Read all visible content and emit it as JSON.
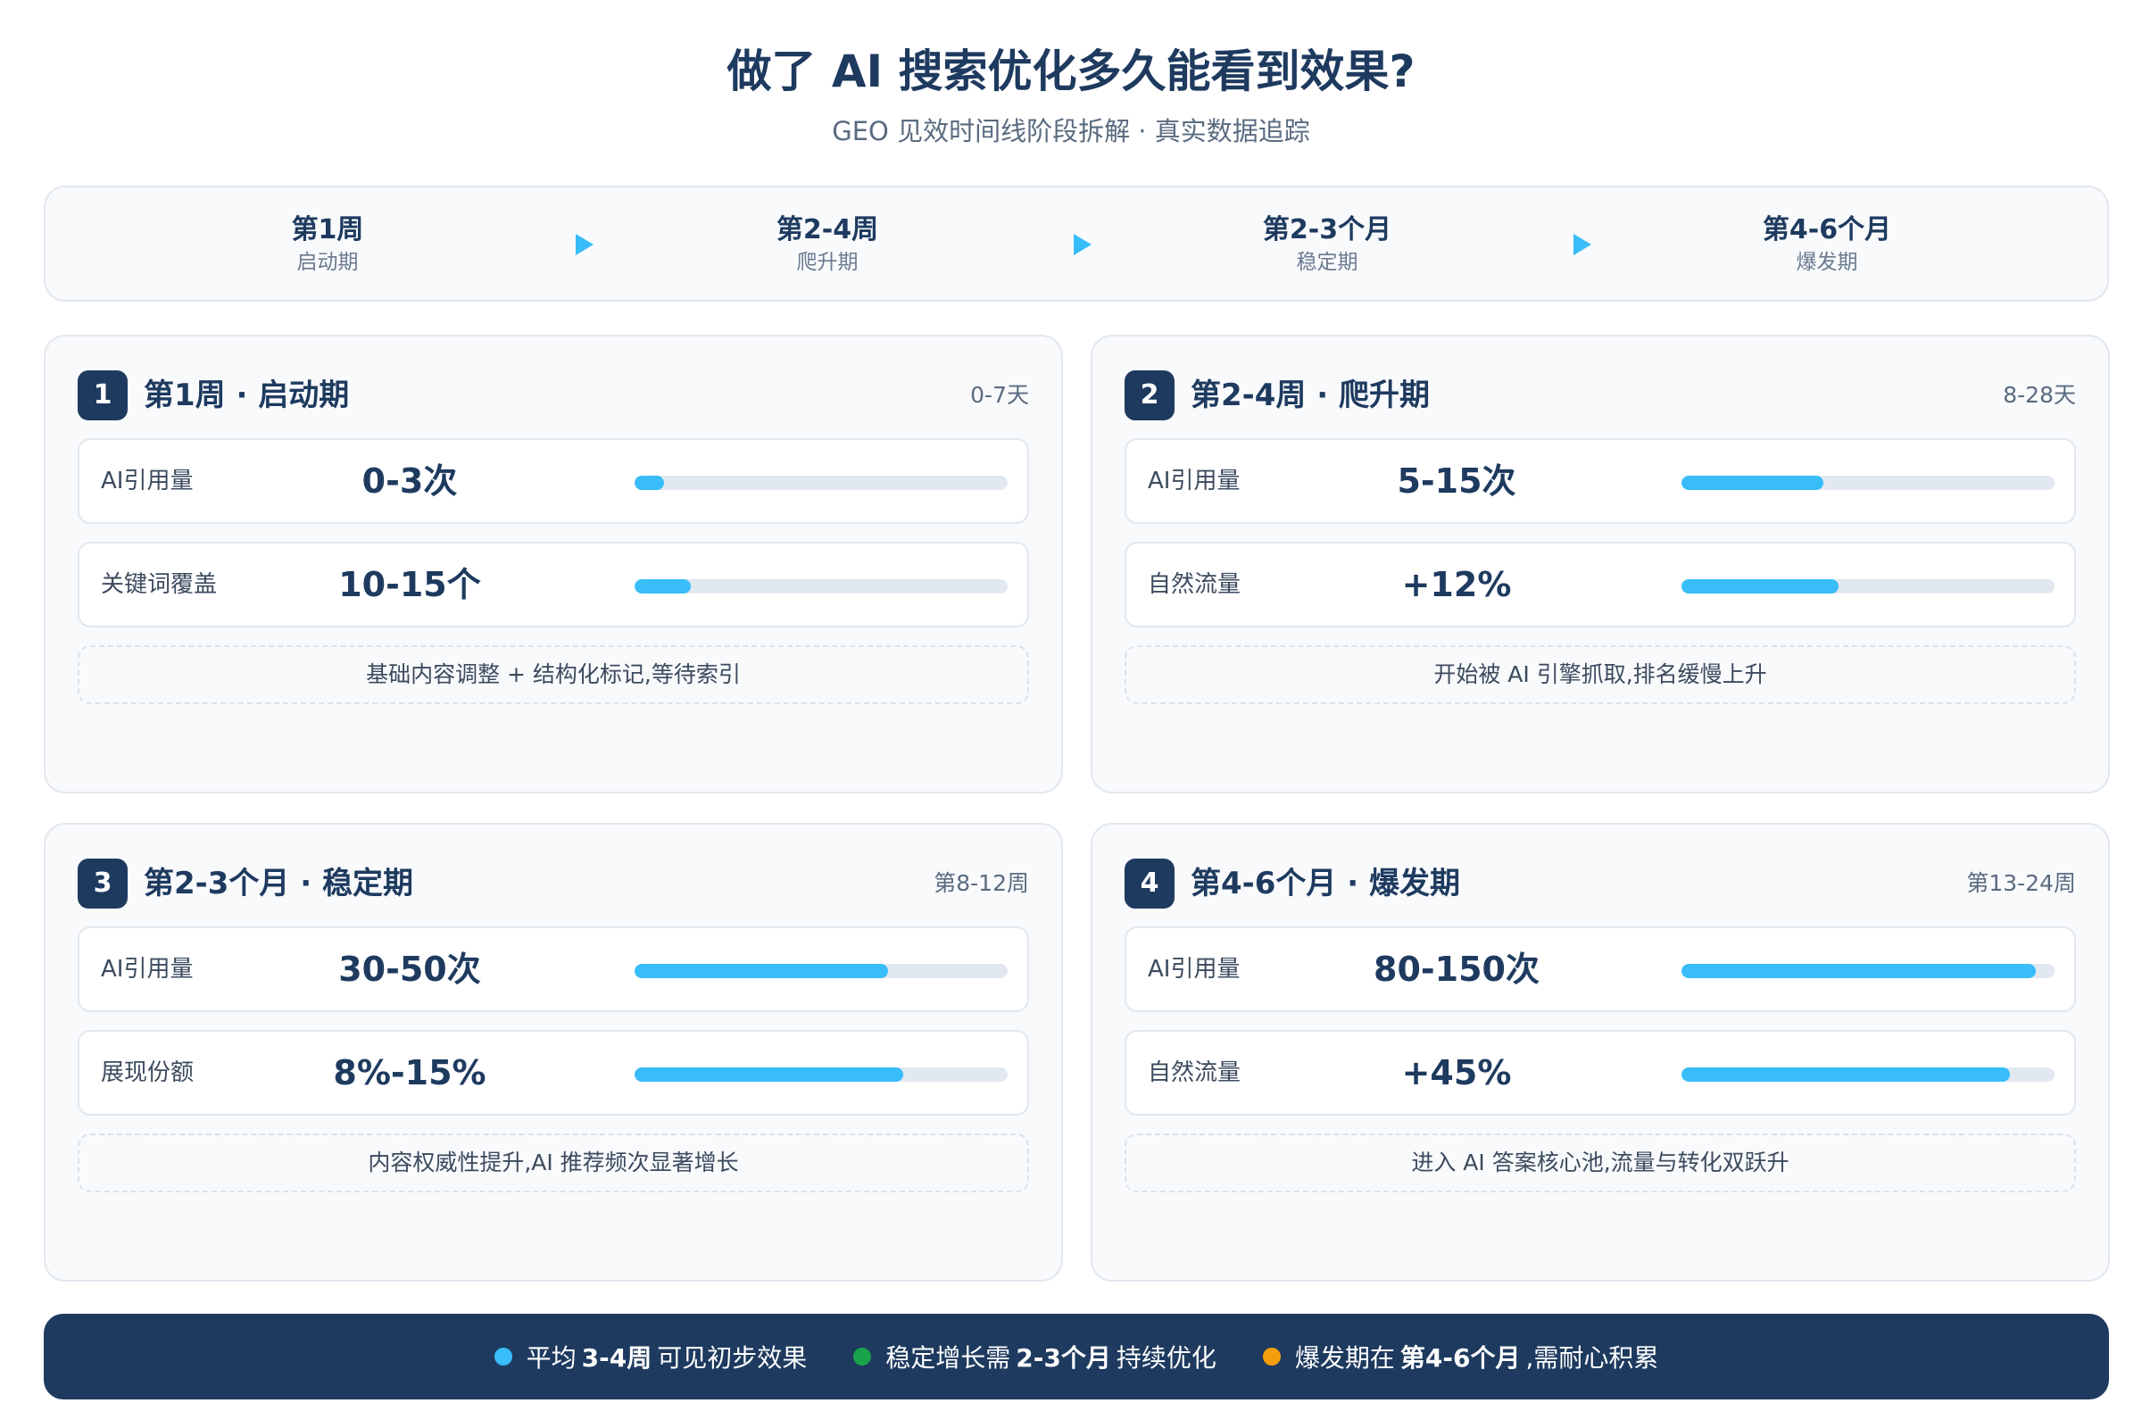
{
  "header": {
    "title": "做了 AI 搜索优化多久能看到效果?",
    "subtitle": "GEO 见效时间线阶段拆解 · 真实数据追踪"
  },
  "timeline": [
    {
      "name": "第1周",
      "phase": "启动期"
    },
    {
      "name": "第2-4周",
      "phase": "爬升期"
    },
    {
      "name": "第2-3个月",
      "phase": "稳定期"
    },
    {
      "name": "第4-6个月",
      "phase": "爆发期"
    }
  ],
  "cards": [
    {
      "badge": "1",
      "title": "第1周 · 启动期",
      "range": "0-7天",
      "metrics": [
        {
          "label": "AI引用量",
          "value": "0-3次",
          "level": 0.08
        },
        {
          "label": "关键词覆盖",
          "value": "10-15个",
          "level": 0.15
        }
      ],
      "note": "基础内容调整 + 结构化标记,等待索引"
    },
    {
      "badge": "2",
      "title": "第2-4周 · 爬升期",
      "range": "8-28天",
      "metrics": [
        {
          "label": "AI引用量",
          "value": "5-15次",
          "level": 0.38
        },
        {
          "label": "自然流量",
          "value": "+12%",
          "level": 0.42
        }
      ],
      "note": "开始被 AI 引擎抓取,排名缓慢上升"
    },
    {
      "badge": "3",
      "title": "第2-3个月 · 稳定期",
      "range": "第8-12周",
      "metrics": [
        {
          "label": "AI引用量",
          "value": "30-50次",
          "level": 0.68
        },
        {
          "label": "展现份额",
          "value": "8%-15%",
          "level": 0.72
        }
      ],
      "note": "内容权威性提升,AI 推荐频次显著增长"
    },
    {
      "badge": "4",
      "title": "第4-6个月 · 爆发期",
      "range": "第13-24周",
      "metrics": [
        {
          "label": "AI引用量",
          "value": "80-150次",
          "level": 0.95
        },
        {
          "label": "自然流量",
          "value": "+45%",
          "level": 0.88
        }
      ],
      "note": "进入 AI 答案核心池,流量与转化双跃升"
    }
  ],
  "footer": [
    {
      "pre": "平均",
      "bold": "3-4周",
      "post": "可见初步效果",
      "color": "#38bdf8"
    },
    {
      "pre": "稳定增长需",
      "bold": "2-3个月",
      "post": "持续优化",
      "color": "#16a34a"
    },
    {
      "pre": "爆发期在",
      "bold": "第4-6个月",
      "post": ",需耐心积累",
      "color": "#f59e0b"
    }
  ],
  "colors": {
    "primary": "#1e3a5f",
    "accent": "#38bdf8"
  }
}
